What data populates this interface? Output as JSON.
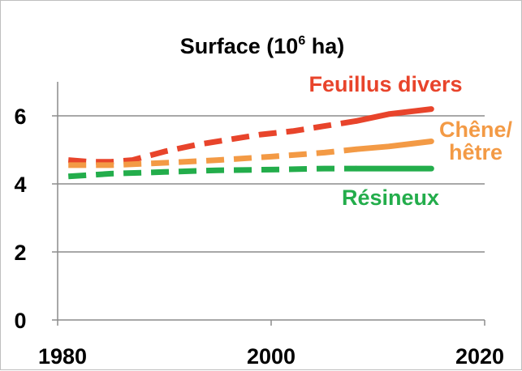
{
  "chart_data": {
    "type": "line",
    "title": "Surface (10",
    "title_superscript": "6",
    "title_suffix": " ha)",
    "xlabel": "",
    "ylabel": "",
    "xlim": [
      1980,
      2020
    ],
    "ylim": [
      0,
      7
    ],
    "x_ticks": [
      1980,
      2000,
      2020
    ],
    "y_ticks": [
      0,
      2,
      4,
      6
    ],
    "grid": true,
    "series": [
      {
        "name": "Feuillus divers",
        "color": "#e8442b",
        "label_lines": [
          "Feuillus divers"
        ],
        "dashed_until": 2008,
        "x": [
          1981,
          1983,
          1985,
          1987,
          1990,
          1993,
          1996,
          1999,
          2002,
          2005,
          2008,
          2011,
          2015
        ],
        "y": [
          4.7,
          4.65,
          4.65,
          4.7,
          4.95,
          5.15,
          5.3,
          5.45,
          5.55,
          5.7,
          5.85,
          6.05,
          6.2
        ]
      },
      {
        "name": "Chêne/ hêtre",
        "color": "#f39a45",
        "label_lines": [
          "Chêne/",
          "hêtre"
        ],
        "dashed_until": 2008,
        "x": [
          1981,
          1985,
          1990,
          1995,
          2000,
          2005,
          2008,
          2011,
          2015
        ],
        "y": [
          4.55,
          4.55,
          4.62,
          4.7,
          4.8,
          4.92,
          5.02,
          5.1,
          5.25
        ]
      },
      {
        "name": "Résineux",
        "color": "#23ad4b",
        "label_lines": [
          "Résineux"
        ],
        "dashed_until": 2008,
        "x": [
          1981,
          1985,
          1990,
          1995,
          2000,
          2005,
          2008,
          2011,
          2015
        ],
        "y": [
          4.22,
          4.3,
          4.35,
          4.4,
          4.42,
          4.45,
          4.45,
          4.45,
          4.45
        ]
      }
    ]
  }
}
